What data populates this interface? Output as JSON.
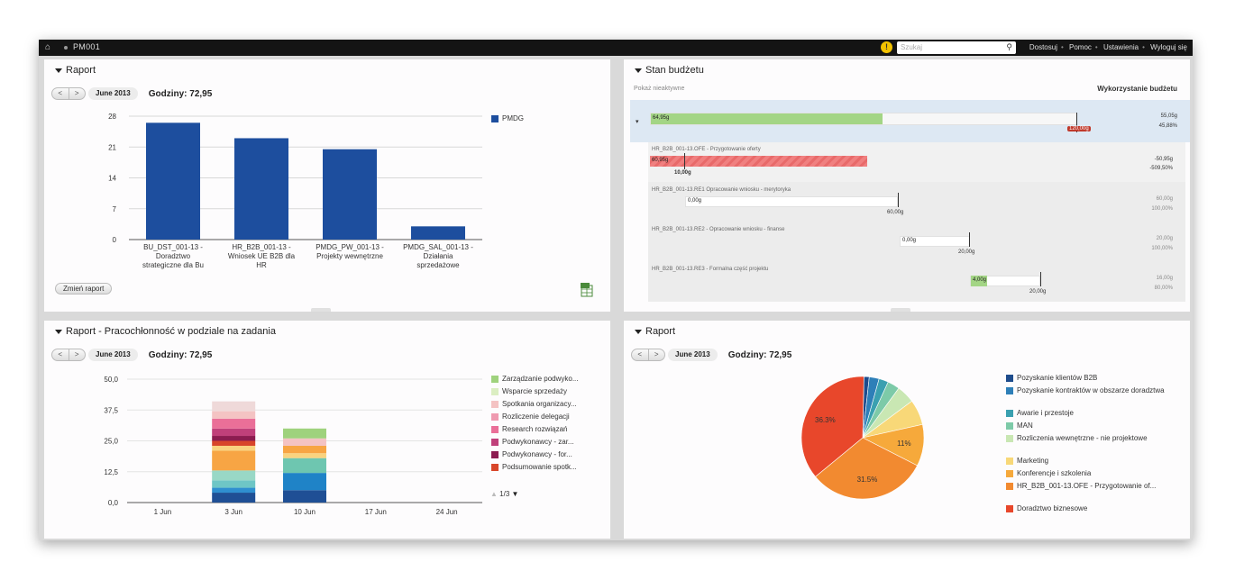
{
  "topbar": {
    "title": "PM001",
    "search_placeholder": "Szukaj",
    "links": [
      "Dostosuj",
      "Pomoc",
      "Ustawienia",
      "Wyloguj się"
    ]
  },
  "panel_tl": {
    "title": "Raport",
    "month": "June 2013",
    "hours": "Godziny: 72,95",
    "change_button": "Zmień raport",
    "chart_data": {
      "type": "bar",
      "categories": [
        [
          "BU_DST_001-13 -",
          "Doradztwo",
          "strategiczne dla Bu"
        ],
        [
          "HR_B2B_001-13 -",
          "Wniosek UE B2B dla",
          "HR"
        ],
        [
          "PMDG_PW_001-13 -",
          "Projekty wewnętrzne"
        ],
        [
          "PMDG_SAL_001-13 -",
          "Działania",
          "sprzedażowe"
        ]
      ],
      "values": [
        26.5,
        23,
        20.5,
        3
      ],
      "series_name": "PMDG",
      "yticks": [
        "0",
        "7",
        "14",
        "21",
        "28"
      ],
      "ylim": [
        0,
        28
      ],
      "color": "#1d4e9e"
    }
  },
  "panel_tr": {
    "title": "Stan budżetu",
    "show_inactive": "Pokaż nieaktywne",
    "usage_header": "Wykorzystanie budżetu",
    "rows": [
      {
        "name": "",
        "used": "64,95g",
        "budget": "120,00g",
        "v1": "55,05g",
        "v2": "45,88%"
      },
      {
        "name": "HR_B2B_001-13.OFE - Przygotowanie oferty",
        "used": "60,95g",
        "budget": "10,00g",
        "v1": "-50,95g",
        "v2": "-509,50%"
      },
      {
        "name": "HR_B2B_001-13.RE1 Opracowanie wniosku - merytoryka",
        "used": "0,00g",
        "budget": "60,00g",
        "v1": "60,00g",
        "v2": "100,00%"
      },
      {
        "name": "HR_B2B_001-13.RE2 - Opracowanie wniosku - finanse",
        "used": "0,00g",
        "budget": "20,00g",
        "v1": "20,00g",
        "v2": "100,00%"
      },
      {
        "name": "HR_B2B_001-13.RE3 - Formalna część projektu",
        "used": "4,00g",
        "budget": "20,00g",
        "v1": "16,00g",
        "v2": "80,00%"
      }
    ]
  },
  "panel_bl": {
    "title": "Raport - Pracochłonność w podziale na zadania",
    "month": "June 2013",
    "hours": "Godziny: 72,95",
    "pager": "1/3",
    "chart_data": {
      "type": "bar",
      "stacked": true,
      "categories": [
        "1 Jun",
        "3 Jun",
        "10 Jun",
        "17 Jun",
        "24 Jun"
      ],
      "yticks": [
        "0,0",
        "12,5",
        "25,0",
        "37,5",
        "50,0"
      ],
      "ylim": [
        0,
        50
      ],
      "legend": [
        {
          "name": "Zarządzanie podwyko...",
          "color": "#9fd27d"
        },
        {
          "name": "Wsparcie sprzedaży",
          "color": "#dbeec2"
        },
        {
          "name": "Spotkania organizacy...",
          "color": "#f4c3c3"
        },
        {
          "name": "Rozliczenie delegacji",
          "color": "#ef9ab0"
        },
        {
          "name": "Research rozwiązań",
          "color": "#ea6f98"
        },
        {
          "name": "Podwykonawcy - zar...",
          "color": "#c0407a"
        },
        {
          "name": "Podwykonawcy - for...",
          "color": "#8c1c50"
        },
        {
          "name": "Podsumowanie spotk...",
          "color": "#d8462a"
        }
      ],
      "stacks": [
        {
          "category": "3 Jun",
          "segments": [
            {
              "value": 4,
              "color": "#1f4f95"
            },
            {
              "value": 2,
              "color": "#2f8fd0"
            },
            {
              "value": 3,
              "color": "#6ec6c6"
            },
            {
              "value": 4,
              "color": "#99d8c6"
            },
            {
              "value": 8,
              "color": "#f7a544"
            },
            {
              "value": 2,
              "color": "#f9d37f"
            },
            {
              "value": 2,
              "color": "#d8462a"
            },
            {
              "value": 2,
              "color": "#8c1c50"
            },
            {
              "value": 3,
              "color": "#c0407a"
            },
            {
              "value": 4,
              "color": "#ea6f98"
            },
            {
              "value": 3,
              "color": "#f4c3c3"
            },
            {
              "value": 4,
              "color": "#efd9d9"
            }
          ]
        },
        {
          "category": "10 Jun",
          "segments": [
            {
              "value": 5,
              "color": "#1f4f95"
            },
            {
              "value": 7,
              "color": "#1f83c7"
            },
            {
              "value": 6,
              "color": "#6ec6b0"
            },
            {
              "value": 2,
              "color": "#f9d37f"
            },
            {
              "value": 3,
              "color": "#f7a544"
            },
            {
              "value": 3,
              "color": "#f4c3c3"
            },
            {
              "value": 4,
              "color": "#9fd27d"
            }
          ]
        }
      ]
    }
  },
  "panel_br": {
    "title": "Raport",
    "month": "June 2013",
    "hours": "Godziny: 72,95",
    "chart_data": {
      "type": "pie",
      "slices": [
        {
          "name": "Pozyskanie klientów B2B",
          "value": 1.4,
          "color": "#1e4c8c",
          "label": ""
        },
        {
          "name": "Pozyskanie kontraktów w obszarze doradztwa",
          "value": 2.6,
          "color": "#2e7fb8",
          "label": ""
        },
        {
          "name": "Awarie i przestoje",
          "value": 2.5,
          "color": "#3aa0b0",
          "label": ""
        },
        {
          "name": "MAN",
          "value": 3.2,
          "color": "#7dcaa8",
          "label": ""
        },
        {
          "name": "Rozliczenia wewnętrzne - nie projektowe",
          "value": 4.8,
          "color": "#c9e7b3",
          "label": ""
        },
        {
          "name": "Marketing",
          "value": 6.7,
          "color": "#f8d878",
          "label": ""
        },
        {
          "name": "Konferencje i szkolenia",
          "value": 11,
          "color": "#f6a93b",
          "label": "11%"
        },
        {
          "name": "HR_B2B_001-13.OFE - Przygotowanie of...",
          "value": 31.5,
          "color": "#f28a30",
          "label": "31.5%"
        },
        {
          "name": "Doradztwo biznesowe",
          "value": 36.3,
          "color": "#e8472b",
          "label": "36.3%"
        }
      ]
    }
  }
}
